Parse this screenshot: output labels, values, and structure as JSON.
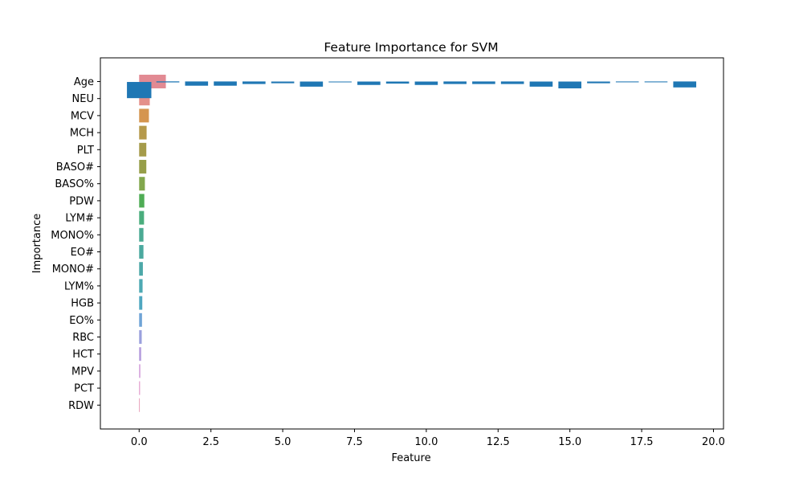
{
  "chart_data": {
    "type": "bar",
    "orientation": "horizontal",
    "title": "Feature Importance for SVM",
    "xlabel": "Feature",
    "ylabel": "Importance",
    "xlim": [
      -1.35,
      20.35
    ],
    "x_ticks": [
      0.0,
      2.5,
      5.0,
      7.5,
      10.0,
      12.5,
      15.0,
      17.5,
      20.0
    ],
    "x_tick_labels": [
      "0.0",
      "2.5",
      "5.0",
      "7.5",
      "10.0",
      "12.5",
      "15.0",
      "17.5",
      "20.0"
    ],
    "grid": false,
    "legend": "none",
    "categories": [
      "Age",
      "NEU",
      "MCV",
      "MCH",
      "PLT",
      "BASO#",
      "BASO%",
      "PDW",
      "LYM#",
      "MONO%",
      "EO#",
      "MONO#",
      "LYM%",
      "HGB",
      "EO%",
      "RBC",
      "HCT",
      "MPV",
      "PCT",
      "RDW"
    ],
    "series": [
      {
        "values": [
          0.93,
          0.37,
          0.34,
          0.26,
          0.25,
          0.25,
          0.2,
          0.18,
          0.17,
          0.15,
          0.15,
          0.13,
          0.12,
          0.11,
          0.1,
          0.09,
          0.07,
          0.04,
          0.03,
          0.02
        ],
        "colors": [
          "#e28a93",
          "#e4908a",
          "#d5954f",
          "#b5994b",
          "#a59b4a",
          "#969e49",
          "#82a74d",
          "#4fac55",
          "#4aad7d",
          "#4baa93",
          "#4ba99f",
          "#4ca8a8",
          "#4da9b3",
          "#4fa7c0",
          "#6fa4d6",
          "#9aa0dd",
          "#b49bdc",
          "#cf95d6",
          "#de90c6",
          "#e28aaa"
        ]
      },
      {
        "name": "overlay",
        "color": "#1f77b4",
        "points": [
          {
            "x": 0,
            "y": 0.5,
            "w": 0.85,
            "h": 0.95
          },
          {
            "x": 1,
            "y": 0.02,
            "w": 0.8,
            "h": 0.06
          },
          {
            "x": 2,
            "y": 0.12,
            "w": 0.8,
            "h": 0.25
          },
          {
            "x": 3,
            "y": 0.12,
            "w": 0.8,
            "h": 0.25
          },
          {
            "x": 4,
            "y": 0.07,
            "w": 0.8,
            "h": 0.15
          },
          {
            "x": 5,
            "y": 0.05,
            "w": 0.8,
            "h": 0.1
          },
          {
            "x": 6,
            "y": 0.15,
            "w": 0.8,
            "h": 0.3
          },
          {
            "x": 7,
            "y": 0.01,
            "w": 0.8,
            "h": 0.02
          },
          {
            "x": 8,
            "y": 0.1,
            "w": 0.8,
            "h": 0.2
          },
          {
            "x": 9,
            "y": 0.06,
            "w": 0.8,
            "h": 0.12
          },
          {
            "x": 10,
            "y": 0.1,
            "w": 0.8,
            "h": 0.2
          },
          {
            "x": 11,
            "y": 0.07,
            "w": 0.8,
            "h": 0.15
          },
          {
            "x": 12,
            "y": 0.07,
            "w": 0.8,
            "h": 0.15
          },
          {
            "x": 13,
            "y": 0.07,
            "w": 0.8,
            "h": 0.15
          },
          {
            "x": 14,
            "y": 0.15,
            "w": 0.8,
            "h": 0.3
          },
          {
            "x": 15,
            "y": 0.2,
            "w": 0.8,
            "h": 0.4
          },
          {
            "x": 16,
            "y": 0.05,
            "w": 0.8,
            "h": 0.1
          },
          {
            "x": 17,
            "y": 0.02,
            "w": 0.8,
            "h": 0.05
          },
          {
            "x": 18,
            "y": 0.02,
            "w": 0.8,
            "h": 0.05
          },
          {
            "x": 19,
            "y": 0.17,
            "w": 0.8,
            "h": 0.35
          }
        ]
      }
    ]
  }
}
